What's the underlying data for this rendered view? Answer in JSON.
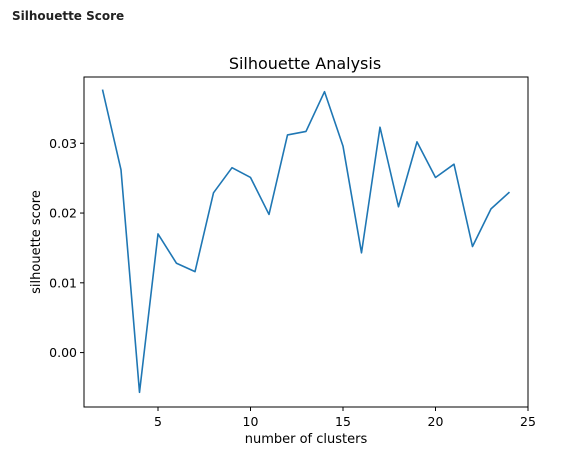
{
  "page": {
    "heading": "Silhouette Score"
  },
  "chart_data": {
    "type": "line",
    "title": "Silhouette Analysis",
    "xlabel": "number of clusters",
    "ylabel": "silhouette score",
    "xlim": [
      1.0,
      25.0
    ],
    "ylim": [
      -0.0078,
      0.0395
    ],
    "xticks": [
      5,
      10,
      15,
      20,
      25
    ],
    "xtick_labels": [
      "5",
      "10",
      "15",
      "20",
      "25"
    ],
    "yticks": [
      0.0,
      0.01,
      0.02,
      0.03
    ],
    "ytick_labels": [
      "0.00",
      "0.01",
      "0.02",
      "0.03"
    ],
    "grid": false,
    "line_color": "#1f77b4",
    "series": [
      {
        "x": [
          2,
          3,
          4,
          5,
          6,
          7,
          8,
          9,
          10,
          11,
          12,
          13,
          14,
          15,
          16,
          17,
          18,
          19,
          20,
          21,
          22,
          23,
          24
        ],
        "values": [
          0.0377,
          0.0262,
          -0.0057,
          0.017,
          0.0128,
          0.0116,
          0.0229,
          0.0265,
          0.0251,
          0.0198,
          0.0312,
          0.0317,
          0.0374,
          0.0296,
          0.0143,
          0.0323,
          0.0209,
          0.0302,
          0.0251,
          0.027,
          0.0152,
          0.0206,
          0.023
        ]
      }
    ]
  }
}
